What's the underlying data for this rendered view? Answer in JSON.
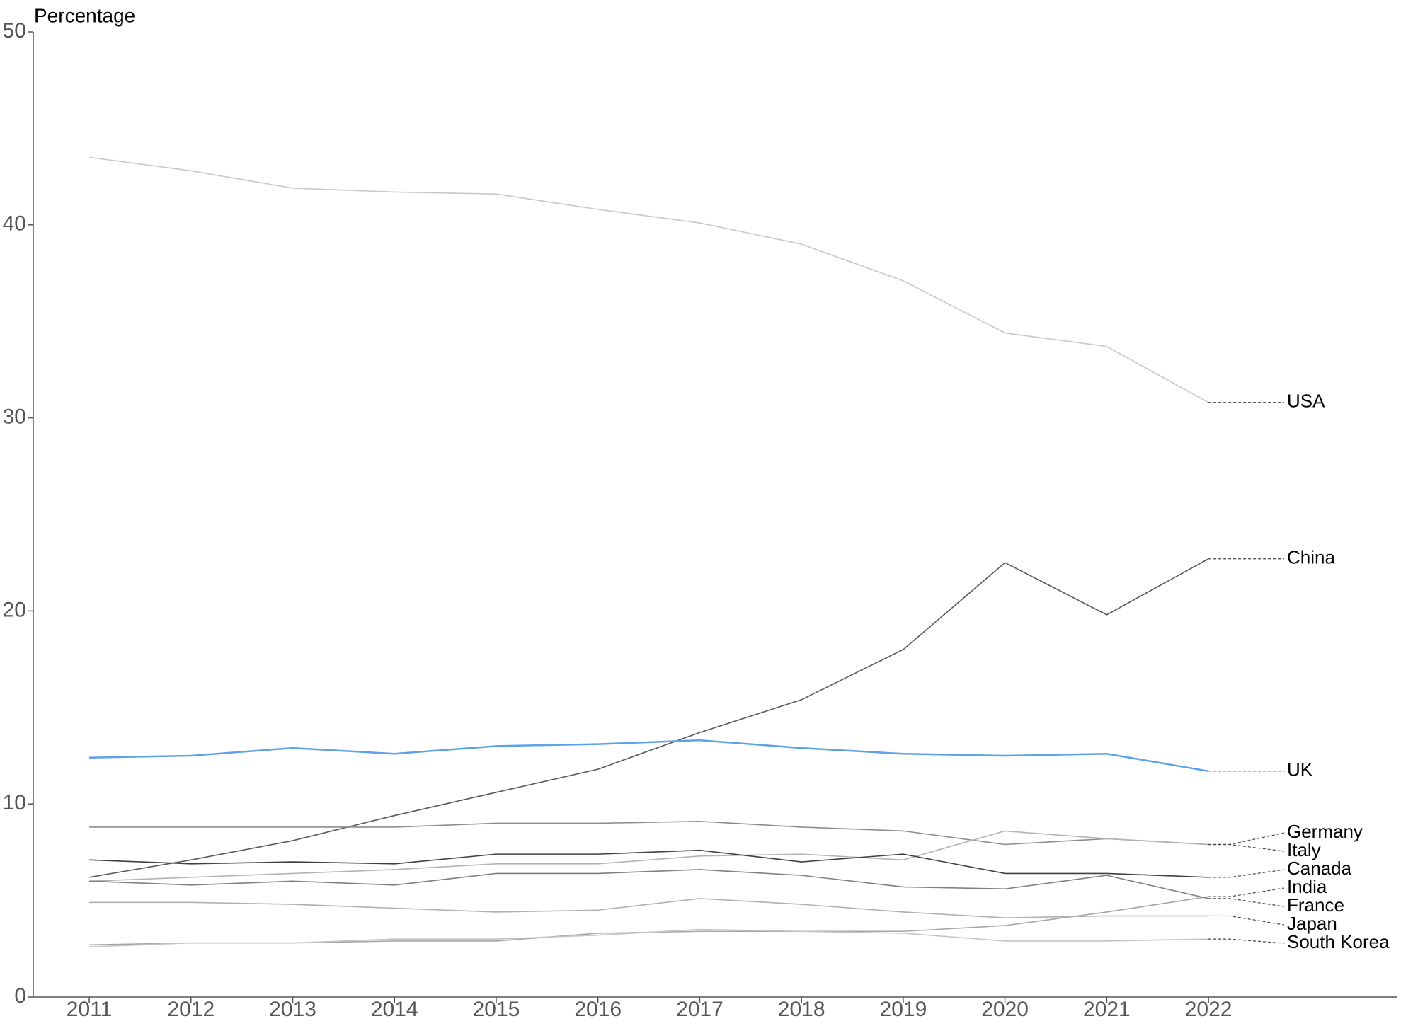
{
  "chart_data": {
    "type": "line",
    "y_label": "Percentage",
    "x": [
      2011,
      2012,
      2013,
      2014,
      2015,
      2016,
      2017,
      2018,
      2019,
      2020,
      2021,
      2022
    ],
    "xlim": [
      2010.45,
      2023.85
    ],
    "xticks": [
      2011,
      2012,
      2013,
      2014,
      2015,
      2016,
      2017,
      2018,
      2019,
      2020,
      2021,
      2022
    ],
    "ylim": [
      0,
      50
    ],
    "yticks": [
      0,
      10,
      20,
      30,
      40,
      50
    ],
    "series": [
      {
        "name": "USA",
        "color": "#c8c8c8",
        "values": [
          43.5,
          42.8,
          41.9,
          41.7,
          41.6,
          40.8,
          40.1,
          39.0,
          37.1,
          34.4,
          33.7,
          30.8
        ]
      },
      {
        "name": "China",
        "color": "#595959",
        "values": [
          6.2,
          7.1,
          8.1,
          9.4,
          10.6,
          11.8,
          13.7,
          15.4,
          18.0,
          22.5,
          19.8,
          22.7
        ]
      },
      {
        "name": "UK",
        "color": "#5ba3e6",
        "values": [
          12.4,
          12.5,
          12.9,
          12.6,
          13.0,
          13.1,
          13.3,
          12.9,
          12.6,
          12.5,
          12.6,
          11.7
        ]
      },
      {
        "name": "Germany",
        "color": "#8c8c8c",
        "values": [
          8.8,
          8.8,
          8.8,
          8.8,
          9.0,
          9.0,
          9.1,
          8.8,
          8.6,
          7.9,
          8.2,
          7.9
        ]
      },
      {
        "name": "Italy",
        "color": "#b3b3b3",
        "values": [
          6.0,
          6.2,
          6.4,
          6.6,
          6.9,
          6.9,
          7.3,
          7.4,
          7.1,
          8.6,
          8.2,
          7.9
        ]
      },
      {
        "name": "Canada",
        "color": "#404040",
        "values": [
          7.1,
          6.9,
          7.0,
          6.9,
          7.4,
          7.4,
          7.6,
          7.0,
          7.4,
          6.4,
          6.4,
          6.2
        ]
      },
      {
        "name": "India",
        "color": "#a6a6a6",
        "values": [
          2.7,
          2.8,
          2.8,
          2.9,
          2.9,
          3.3,
          3.4,
          3.4,
          3.4,
          3.7,
          4.4,
          5.2
        ]
      },
      {
        "name": "France",
        "color": "#7f7f7f",
        "values": [
          6.0,
          5.8,
          6.0,
          5.8,
          6.4,
          6.4,
          6.6,
          6.3,
          5.7,
          5.6,
          6.3,
          5.1
        ]
      },
      {
        "name": "Japan",
        "color": "#b0b0b0",
        "values": [
          4.9,
          4.9,
          4.8,
          4.6,
          4.4,
          4.5,
          5.1,
          4.8,
          4.4,
          4.1,
          4.2,
          4.2
        ]
      },
      {
        "name": "South Korea",
        "color": "#c4c4c4",
        "values": [
          2.6,
          2.8,
          2.8,
          3.0,
          3.0,
          3.2,
          3.5,
          3.4,
          3.3,
          2.9,
          2.9,
          3.0
        ]
      }
    ]
  }
}
